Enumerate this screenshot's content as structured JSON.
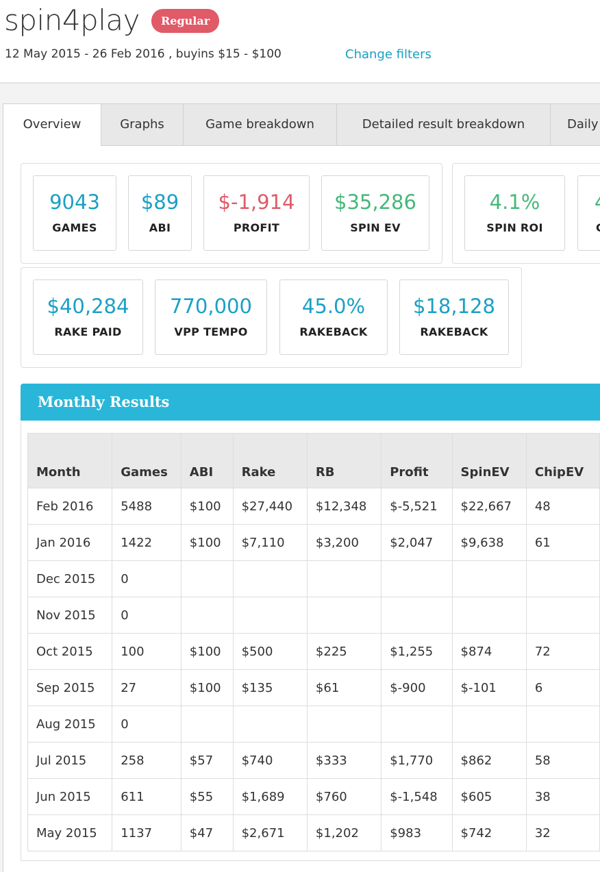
{
  "player": {
    "name": "spin4play",
    "badge": "Regular"
  },
  "filters": {
    "summary": "12 May 2015 - 26 Feb 2016 , buyins $15 - $100",
    "change_label": "Change filters"
  },
  "tabs": [
    {
      "label": "Overview",
      "active": true
    },
    {
      "label": "Graphs"
    },
    {
      "label": "Game breakdown"
    },
    {
      "label": "Detailed result breakdown"
    },
    {
      "label": "Daily"
    }
  ],
  "stats_row1": [
    {
      "value": "9043",
      "label": "GAMES",
      "color": "#1aa0c4"
    },
    {
      "value": "$89",
      "label": "ABI",
      "color": "#1aa0c4"
    },
    {
      "value": "$-1,914",
      "label": "PROFIT",
      "color": "#e05a68"
    },
    {
      "value": "$35,286",
      "label": "SPIN EV",
      "color": "#45b87a"
    },
    {
      "value": "4.1%",
      "label": "SPIN ROI",
      "color": "#45b87a"
    },
    {
      "value": "4",
      "label": "C",
      "color": "#45b87a"
    }
  ],
  "stats_row2": [
    {
      "value": "$40,284",
      "label": "RAKE PAID",
      "color": "#1aa0c4"
    },
    {
      "value": "770,000",
      "label": "VPP TEMPO",
      "color": "#1aa0c4"
    },
    {
      "value": "45.0%",
      "label": "RAKEBACK",
      "color": "#1aa0c4"
    },
    {
      "value": "$18,128",
      "label": "RAKEBACK",
      "color": "#1aa0c4"
    }
  ],
  "monthly": {
    "title": "Monthly Results",
    "columns": [
      "Month",
      "Games",
      "ABI",
      "Rake",
      "RB",
      "Profit",
      "SpinEV",
      "ChipEV"
    ],
    "rows": [
      [
        "Feb 2016",
        "5488",
        "$100",
        "$27,440",
        "$12,348",
        "$-5,521",
        "$22,667",
        "48"
      ],
      [
        "Jan 2016",
        "1422",
        "$100",
        "$7,110",
        "$3,200",
        "$2,047",
        "$9,638",
        "61"
      ],
      [
        "Dec 2015",
        "0",
        "",
        "",
        "",
        "",
        "",
        ""
      ],
      [
        "Nov 2015",
        "0",
        "",
        "",
        "",
        "",
        "",
        ""
      ],
      [
        "Oct 2015",
        "100",
        "$100",
        "$500",
        "$225",
        "$1,255",
        "$874",
        "72"
      ],
      [
        "Sep 2015",
        "27",
        "$100",
        "$135",
        "$61",
        "$-900",
        "$-101",
        "6"
      ],
      [
        "Aug 2015",
        "0",
        "",
        "",
        "",
        "",
        "",
        ""
      ],
      [
        "Jul 2015",
        "258",
        "$57",
        "$740",
        "$333",
        "$1,770",
        "$862",
        "58"
      ],
      [
        "Jun 2015",
        "611",
        "$55",
        "$1,689",
        "$760",
        "$-1,548",
        "$605",
        "38"
      ],
      [
        "May 2015",
        "1137",
        "$47",
        "$2,671",
        "$1,202",
        "$983",
        "$742",
        "32"
      ]
    ]
  }
}
